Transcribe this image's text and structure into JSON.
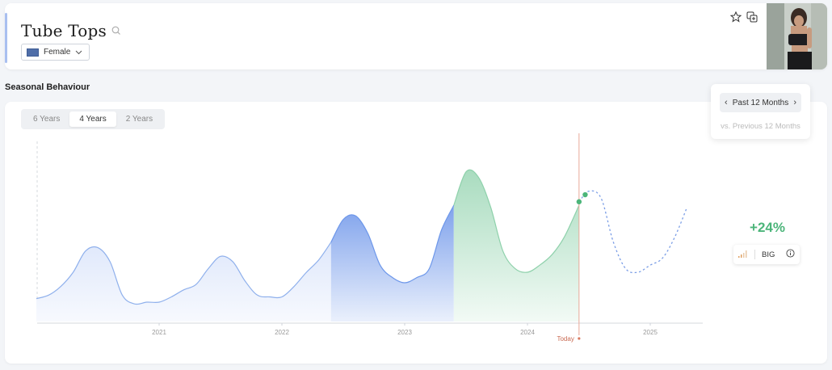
{
  "header": {
    "title": "Tube Tops",
    "gender_filter": "Female",
    "icons": [
      "search-icon",
      "star-icon",
      "compare-icon"
    ]
  },
  "section": {
    "title": "Seasonal Behaviour"
  },
  "tabs": [
    {
      "label": "6 Years",
      "active": false
    },
    {
      "label": "4 Years",
      "active": true
    },
    {
      "label": "2 Years",
      "active": false
    }
  ],
  "period": {
    "label": "Past 12 Months",
    "compare": "vs. Previous 12 Months"
  },
  "forecast": {
    "growth": "+24%",
    "size_label": "BIG"
  },
  "colors": {
    "history": "#8fb0ec",
    "previous_period": "#6d97ea",
    "current_period": "#8ed1ab",
    "forecast": "#7a9de6",
    "today_line": "#e8a99a",
    "growth": "#4cb57a"
  },
  "chart_data": {
    "type": "area",
    "x_ticks": [
      "2021",
      "2022",
      "2023",
      "2024",
      "2025"
    ],
    "today_label": "Today",
    "ylim": [
      0,
      100
    ],
    "history": [
      [
        2020.0,
        13
      ],
      [
        2020.1,
        15
      ],
      [
        2020.2,
        20
      ],
      [
        2020.3,
        28
      ],
      [
        2020.4,
        40
      ],
      [
        2020.5,
        42
      ],
      [
        2020.6,
        34
      ],
      [
        2020.7,
        15
      ],
      [
        2020.8,
        10
      ],
      [
        2020.9,
        11
      ],
      [
        2021.0,
        11
      ],
      [
        2021.1,
        14
      ],
      [
        2021.2,
        18
      ],
      [
        2021.3,
        21
      ],
      [
        2021.4,
        30
      ],
      [
        2021.5,
        37
      ],
      [
        2021.6,
        34
      ],
      [
        2021.7,
        23
      ],
      [
        2021.8,
        15
      ],
      [
        2021.9,
        14
      ],
      [
        2022.0,
        14
      ],
      [
        2022.1,
        20
      ],
      [
        2022.2,
        28
      ],
      [
        2022.3,
        35
      ],
      [
        2022.4,
        45
      ]
    ],
    "previous_period": [
      [
        2022.4,
        45
      ],
      [
        2022.5,
        58
      ],
      [
        2022.6,
        60
      ],
      [
        2022.7,
        50
      ],
      [
        2022.8,
        32
      ],
      [
        2022.9,
        25
      ],
      [
        2023.0,
        22
      ],
      [
        2023.1,
        25
      ],
      [
        2023.2,
        30
      ],
      [
        2023.3,
        52
      ],
      [
        2023.4,
        66
      ]
    ],
    "current_period": [
      [
        2023.4,
        66
      ],
      [
        2023.5,
        85
      ],
      [
        2023.6,
        82
      ],
      [
        2023.7,
        65
      ],
      [
        2023.8,
        40
      ],
      [
        2023.9,
        30
      ],
      [
        2024.0,
        28
      ],
      [
        2024.1,
        32
      ],
      [
        2024.2,
        38
      ],
      [
        2024.3,
        48
      ],
      [
        2024.42,
        66
      ]
    ],
    "forecast": [
      [
        2024.42,
        68
      ],
      [
        2024.5,
        74
      ],
      [
        2024.6,
        70
      ],
      [
        2024.7,
        45
      ],
      [
        2024.8,
        30
      ],
      [
        2024.9,
        28
      ],
      [
        2025.0,
        32
      ],
      [
        2025.1,
        36
      ],
      [
        2025.2,
        48
      ],
      [
        2025.3,
        65
      ]
    ],
    "markers": [
      [
        2024.42,
        68
      ],
      [
        2024.47,
        72
      ]
    ]
  }
}
